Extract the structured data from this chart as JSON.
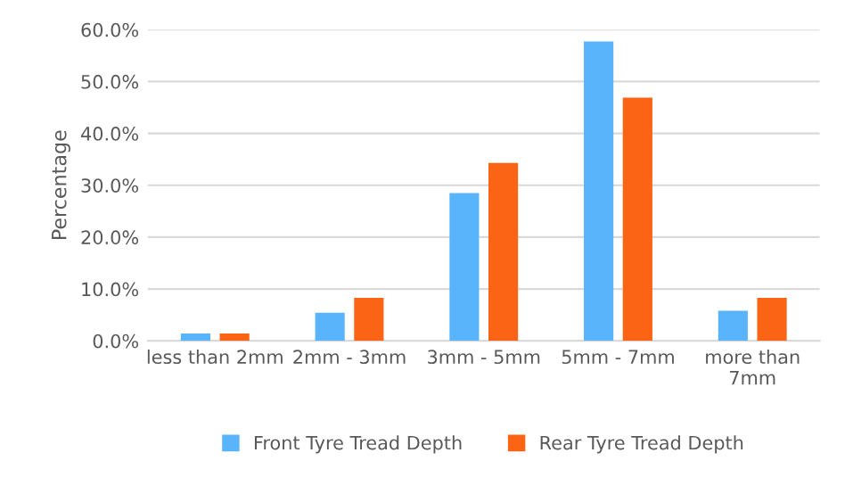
{
  "chart_data": {
    "type": "bar",
    "ylabel": "Percentage",
    "categories": [
      "less than 2mm",
      "2mm - 3mm",
      "3mm - 5mm",
      "5mm - 7mm",
      "more than\n7mm"
    ],
    "series": [
      {
        "name": "Front Tyre Tread Depth",
        "color": "#5ab4fc",
        "values": [
          1.4,
          5.4,
          28.5,
          57.7,
          5.8
        ]
      },
      {
        "name": "Rear Tyre Tread Depth",
        "color": "#fa6414",
        "values": [
          1.4,
          8.3,
          34.3,
          46.9,
          8.3
        ]
      }
    ],
    "ylim": [
      0,
      60
    ],
    "yticks": [
      {
        "value": 0,
        "label": "0.0%"
      },
      {
        "value": 10,
        "label": "10.0%"
      },
      {
        "value": 20,
        "label": "20.0%"
      },
      {
        "value": 30,
        "label": "30.0%"
      },
      {
        "value": 40,
        "label": "40.0%"
      },
      {
        "value": 50,
        "label": "50.0%"
      },
      {
        "value": 60,
        "label": "60.0%"
      }
    ],
    "grid": "y",
    "legend": "bottom"
  }
}
